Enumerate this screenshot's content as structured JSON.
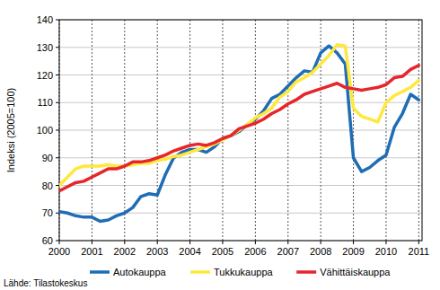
{
  "chart_data": {
    "type": "line",
    "y_label": "Indeksi (2005=100)",
    "source": "Lähde: Tilastokeskus",
    "x": [
      2000,
      2000.25,
      2000.5,
      2000.75,
      2001,
      2001.25,
      2001.5,
      2001.75,
      2002,
      2002.25,
      2002.5,
      2002.75,
      2003,
      2003.25,
      2003.5,
      2003.75,
      2004,
      2004.25,
      2004.5,
      2004.75,
      2005,
      2005.25,
      2005.5,
      2005.75,
      2006,
      2006.25,
      2006.5,
      2006.75,
      2007,
      2007.25,
      2007.5,
      2007.75,
      2008,
      2008.25,
      2008.5,
      2008.75,
      2009,
      2009.25,
      2009.5,
      2009.75,
      2010,
      2010.25,
      2010.5,
      2010.75,
      2011
    ],
    "series": [
      {
        "name": "Autokauppa",
        "color": "#1f6db5",
        "values": [
          70.5,
          70,
          69,
          68.5,
          68.5,
          67,
          67.5,
          69,
          70,
          72,
          76,
          77,
          76.5,
          84,
          90,
          92,
          93,
          93,
          92,
          94,
          97,
          98,
          99.5,
          102,
          104,
          107,
          111.5,
          113,
          116,
          119,
          121.5,
          121,
          128,
          130.5,
          128,
          124,
          90,
          85,
          86.5,
          89,
          91,
          101,
          106,
          113,
          111
        ]
      },
      {
        "name": "Tukkukauppa",
        "color": "#ffe83c",
        "values": [
          80,
          83,
          86,
          87,
          87,
          87,
          87.5,
          87,
          87,
          87.5,
          88,
          88,
          89,
          89.5,
          90.5,
          91,
          92,
          93,
          94,
          95,
          96.5,
          98,
          100,
          102,
          104.5,
          106,
          108,
          112,
          114,
          117.5,
          119,
          121,
          124,
          127,
          131,
          130.5,
          108,
          105,
          104,
          103,
          110,
          112.5,
          114,
          115.5,
          118
        ]
      },
      {
        "name": "Vähittäiskauppa",
        "color": "#e6262b",
        "values": [
          78,
          79.5,
          81,
          81.5,
          83,
          84.5,
          86,
          86,
          87,
          88.5,
          88.5,
          89,
          90,
          91,
          92.5,
          93.5,
          94.5,
          95,
          94.5,
          95.5,
          97,
          98,
          100.5,
          101.5,
          102.5,
          104,
          106,
          107.5,
          109.5,
          111,
          113,
          114,
          115,
          116,
          117,
          115.5,
          115,
          114.5,
          115,
          115.5,
          116.5,
          119,
          119.5,
          122,
          123.5
        ]
      }
    ],
    "xlim": [
      2000,
      2011.1
    ],
    "xticks": [
      2000,
      2001,
      2002,
      2003,
      2004,
      2005,
      2006,
      2007,
      2008,
      2009,
      2010,
      2011
    ],
    "ylim": [
      60,
      140
    ],
    "yticks": [
      60,
      70,
      80,
      90,
      100,
      110,
      120,
      130,
      140
    ],
    "grid": true,
    "legend": "bottom"
  }
}
